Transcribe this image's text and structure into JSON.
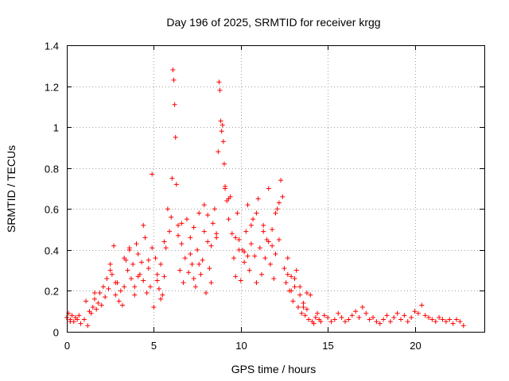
{
  "chart_data": {
    "type": "scatter",
    "title": "Day 196 of 2025, SRMTID for receiver krgg",
    "xlabel": "GPS time / hours",
    "ylabel": "SRMTID / TECUs",
    "xlim": [
      0,
      24
    ],
    "ylim": [
      0,
      1.4
    ],
    "xticks": [
      0,
      5,
      10,
      15,
      20
    ],
    "xtick_labels": [
      "0",
      "5",
      "10",
      "15",
      "20"
    ],
    "yticks": [
      0,
      0.2,
      0.4,
      0.6,
      0.8,
      1.0,
      1.2,
      1.4
    ],
    "ytick_labels": [
      "0",
      "0.2",
      "0.4",
      "0.6",
      "0.8",
      "1",
      "1.2",
      "1.4"
    ],
    "grid": true,
    "marker": "plus",
    "color": "#ff0000",
    "series": [
      {
        "name": "SRMTID",
        "x": [
          0.0,
          0.1,
          0.2,
          0.3,
          0.4,
          0.5,
          0.6,
          0.8,
          1.0,
          1.2,
          1.4,
          1.5,
          1.6,
          1.7,
          1.8,
          1.9,
          2.0,
          2.1,
          2.2,
          2.3,
          2.4,
          2.5,
          2.6,
          2.7,
          2.8,
          2.9,
          3.0,
          3.1,
          3.2,
          3.3,
          3.4,
          3.5,
          3.6,
          3.7,
          3.8,
          3.9,
          4.0,
          4.1,
          4.2,
          4.3,
          4.4,
          4.5,
          4.6,
          4.7,
          4.8,
          4.9,
          5.0,
          5.1,
          5.2,
          5.3,
          5.4,
          5.5,
          5.6,
          5.7,
          5.8,
          5.9,
          6.0,
          6.05,
          6.1,
          6.15,
          6.2,
          6.25,
          6.3,
          6.4,
          6.5,
          6.6,
          6.7,
          6.8,
          6.9,
          7.0,
          7.1,
          7.2,
          7.3,
          7.4,
          7.5,
          7.6,
          7.7,
          7.8,
          7.9,
          8.0,
          8.1,
          8.2,
          8.3,
          8.4,
          8.5,
          8.6,
          8.7,
          8.75,
          8.8,
          8.85,
          8.9,
          8.95,
          9.0,
          9.05,
          9.1,
          9.2,
          9.3,
          9.4,
          9.5,
          9.6,
          9.7,
          9.8,
          9.9,
          10.0,
          10.1,
          10.2,
          10.3,
          10.4,
          10.5,
          10.6,
          10.7,
          10.8,
          10.9,
          11.0,
          11.1,
          11.2,
          11.3,
          11.4,
          11.5,
          11.6,
          11.7,
          11.8,
          11.9,
          12.0,
          12.1,
          12.2,
          12.3,
          12.4,
          12.5,
          12.6,
          12.7,
          12.8,
          12.9,
          13.0,
          13.1,
          13.2,
          13.3,
          13.4,
          13.5,
          13.6,
          13.7,
          13.8,
          13.9,
          14.0,
          14.1,
          14.2,
          14.3,
          14.4,
          14.5,
          14.6,
          14.8,
          15.0,
          15.2,
          15.4,
          15.6,
          15.8,
          16.0,
          16.2,
          16.4,
          16.6,
          16.8,
          17.0,
          17.2,
          17.4,
          17.6,
          17.8,
          18.0,
          18.2,
          18.4,
          18.6,
          18.8,
          19.0,
          19.2,
          19.4,
          19.6,
          19.8,
          20.0,
          20.2,
          20.4,
          20.6,
          20.8,
          21.0,
          21.2,
          21.4,
          21.6,
          21.8,
          22.0,
          22.2,
          22.4,
          22.6,
          22.8,
          1.1,
          1.3,
          2.5,
          3.6,
          3.9,
          4.4,
          4.7,
          5.2,
          5.6,
          6.6,
          7.1,
          7.6,
          8.1,
          8.6,
          9.3,
          9.7,
          10.2,
          10.6,
          11.3,
          11.8,
          12.2,
          12.7,
          13.1,
          13.6,
          0.2,
          0.7,
          1.6,
          2.8,
          3.3,
          4.1,
          4.9,
          5.4,
          6.4,
          7.3,
          7.9,
          8.3,
          9.1,
          9.9,
          10.4,
          10.9,
          11.6,
          12.0,
          12.9,
          13.4,
          13.8
        ],
        "y": [
          0.07,
          0.09,
          0.06,
          0.08,
          0.05,
          0.07,
          0.06,
          0.04,
          0.06,
          0.03,
          0.09,
          0.12,
          0.16,
          0.11,
          0.14,
          0.19,
          0.13,
          0.22,
          0.17,
          0.26,
          0.21,
          0.33,
          0.28,
          0.42,
          0.18,
          0.24,
          0.15,
          0.2,
          0.13,
          0.22,
          0.35,
          0.3,
          0.4,
          0.26,
          0.33,
          0.22,
          0.43,
          0.38,
          0.28,
          0.34,
          0.25,
          0.46,
          0.19,
          0.31,
          0.22,
          0.77,
          0.12,
          0.36,
          0.28,
          0.21,
          0.33,
          0.18,
          0.27,
          0.41,
          0.6,
          0.49,
          0.56,
          0.75,
          1.28,
          1.23,
          1.11,
          0.95,
          0.72,
          0.52,
          0.3,
          0.43,
          0.24,
          0.36,
          0.55,
          0.29,
          0.46,
          0.33,
          0.51,
          0.22,
          0.4,
          0.58,
          0.28,
          0.35,
          0.62,
          0.19,
          0.44,
          0.31,
          0.24,
          0.53,
          0.6,
          0.46,
          0.88,
          1.22,
          1.18,
          1.03,
          0.98,
          1.01,
          0.93,
          0.82,
          0.7,
          0.64,
          0.55,
          0.66,
          0.48,
          0.36,
          0.27,
          0.58,
          0.45,
          0.25,
          0.4,
          0.34,
          0.49,
          0.62,
          0.3,
          0.43,
          0.55,
          0.37,
          0.24,
          0.65,
          0.41,
          0.28,
          0.52,
          0.36,
          0.45,
          0.7,
          0.33,
          0.5,
          0.26,
          0.38,
          0.6,
          0.45,
          0.74,
          0.66,
          0.31,
          0.24,
          0.36,
          0.2,
          0.27,
          0.15,
          0.22,
          0.3,
          0.12,
          0.18,
          0.09,
          0.14,
          0.08,
          0.11,
          0.06,
          0.18,
          0.05,
          0.04,
          0.07,
          0.09,
          0.06,
          0.05,
          0.08,
          0.07,
          0.05,
          0.06,
          0.09,
          0.07,
          0.05,
          0.06,
          0.08,
          0.1,
          0.07,
          0.12,
          0.09,
          0.06,
          0.07,
          0.05,
          0.04,
          0.06,
          0.08,
          0.05,
          0.07,
          0.09,
          0.06,
          0.08,
          0.05,
          0.07,
          0.1,
          0.09,
          0.13,
          0.08,
          0.07,
          0.06,
          0.05,
          0.07,
          0.06,
          0.05,
          0.06,
          0.04,
          0.06,
          0.05,
          0.03,
          0.15,
          0.1,
          0.3,
          0.41,
          0.18,
          0.52,
          0.35,
          0.25,
          0.44,
          0.53,
          0.38,
          0.33,
          0.57,
          0.48,
          0.65,
          0.46,
          0.39,
          0.52,
          0.49,
          0.42,
          0.63,
          0.28,
          0.26,
          0.12,
          0.05,
          0.08,
          0.19,
          0.24,
          0.36,
          0.27,
          0.41,
          0.16,
          0.47,
          0.26,
          0.49,
          0.42,
          0.71,
          0.4,
          0.37,
          0.58,
          0.44,
          0.58,
          0.2,
          0.22,
          0.19
        ]
      }
    ]
  }
}
